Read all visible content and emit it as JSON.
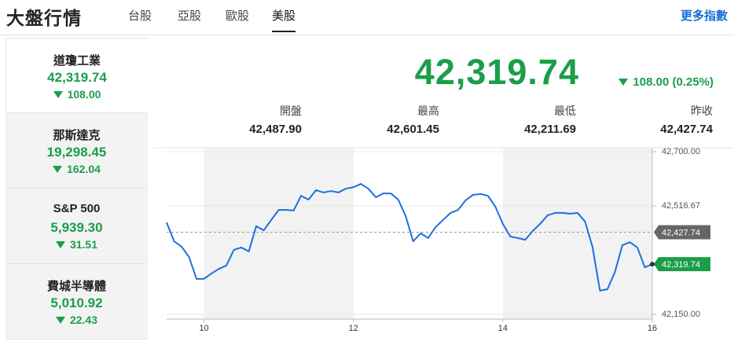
{
  "header": {
    "title": "大盤行情",
    "tabs": [
      "台股",
      "亞股",
      "歐股",
      "美股"
    ],
    "active_tab": 3,
    "more_link": "更多指數"
  },
  "sidebar": {
    "active": 0,
    "items": [
      {
        "name": "道瓊工業",
        "value": "42,319.74",
        "change": "108.00"
      },
      {
        "name": "那斯達克",
        "value": "19,298.45",
        "change": "162.04"
      },
      {
        "name": "S&P 500",
        "value": "5,939.30",
        "change": "31.51"
      },
      {
        "name": "費城半導體",
        "value": "5,010.92",
        "change": "22.43"
      }
    ]
  },
  "quote": {
    "price": "42,319.74",
    "change": "108.00 (0.25%)",
    "stats": [
      {
        "label": "開盤",
        "value": "42,487.90"
      },
      {
        "label": "最高",
        "value": "42,601.45"
      },
      {
        "label": "最低",
        "value": "42,211.69"
      },
      {
        "label": "昨收",
        "value": "42,427.74"
      }
    ]
  },
  "chart_data": {
    "type": "line",
    "x": [
      9.5,
      9.6,
      9.7,
      9.8,
      9.9,
      10.0,
      10.1,
      10.2,
      10.3,
      10.4,
      10.5,
      10.6,
      10.7,
      10.8,
      10.9,
      11.0,
      11.1,
      11.2,
      11.3,
      11.4,
      11.5,
      11.6,
      11.7,
      11.8,
      11.9,
      12.0,
      12.1,
      12.2,
      12.3,
      12.4,
      12.5,
      12.6,
      12.7,
      12.8,
      12.9,
      13.0,
      13.1,
      13.2,
      13.3,
      13.4,
      13.5,
      13.6,
      13.7,
      13.8,
      13.9,
      14.0,
      14.1,
      14.2,
      14.3,
      14.4,
      14.5,
      14.6,
      14.7,
      14.8,
      14.9,
      15.0,
      15.1,
      15.2,
      15.3,
      15.4,
      15.5,
      15.6,
      15.7,
      15.8,
      15.9,
      16.0
    ],
    "series": [
      {
        "color": "#1f6fe0",
        "values": [
          42461,
          42397,
          42379,
          42344,
          42270,
          42270,
          42288,
          42304,
          42315,
          42368,
          42376,
          42363,
          42448,
          42434,
          42469,
          42503,
          42503,
          42501,
          42551,
          42538,
          42570,
          42562,
          42567,
          42562,
          42575,
          42580,
          42591,
          42575,
          42546,
          42559,
          42559,
          42538,
          42482,
          42397,
          42424,
          42408,
          42445,
          42469,
          42493,
          42503,
          42535,
          42554,
          42557,
          42551,
          42514,
          42456,
          42413,
          42408,
          42402,
          42432,
          42456,
          42485,
          42493,
          42493,
          42490,
          42493,
          42464,
          42378,
          42230,
          42235,
          42293,
          42384,
          42394,
          42376,
          42309,
          42319.74
        ]
      }
    ],
    "xlim": [
      9.5,
      16
    ],
    "xticks": [
      10,
      12,
      14,
      16
    ],
    "ylim": [
      42150,
      42700
    ],
    "yticks": [
      {
        "value": 42150,
        "label": "42,150.00"
      },
      {
        "value": 42516.67,
        "label": "42,516.67"
      },
      {
        "value": 42700,
        "label": "42,700.00"
      }
    ],
    "reference_line": {
      "value": 42427.74,
      "label": "42,427.74"
    },
    "last_value": {
      "value": 42319.74,
      "label": "42,319.74"
    },
    "grid": true,
    "shade_alternate": true
  }
}
